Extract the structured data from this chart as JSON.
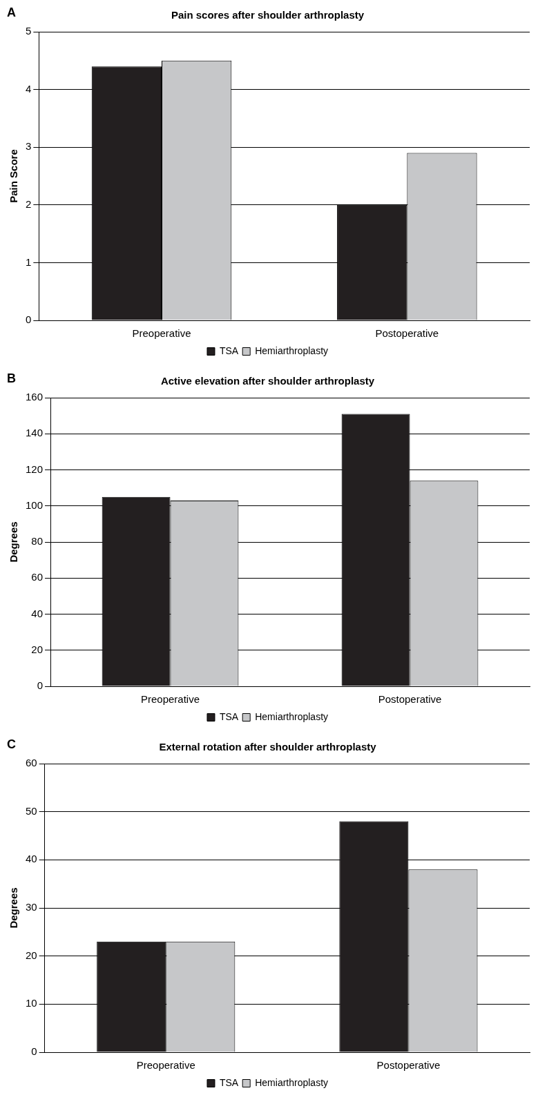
{
  "chart_data": [
    {
      "type": "bar",
      "title": "Pain scores after shoulder arthroplasty",
      "annotations": [
        "A"
      ],
      "ylabel": "Pain Score",
      "categories": [
        "Preoperative",
        "Postoperative"
      ],
      "series": [
        {
          "name": "TSA",
          "color": "#231f20",
          "values": [
            4.4,
            2.0
          ]
        },
        {
          "name": "Hemiarthroplasty",
          "color": "#c6c7c9",
          "values": [
            4.5,
            2.9
          ]
        }
      ],
      "ylim": [
        0,
        5
      ],
      "yticks": [
        0,
        1,
        2,
        3,
        4,
        5
      ],
      "grid": "y",
      "legend": "bottom"
    },
    {
      "type": "bar",
      "title": "Active elevation after shoulder arthroplasty",
      "annotations": [
        "B"
      ],
      "ylabel": "Degrees",
      "categories": [
        "Preoperative",
        "Postoperative"
      ],
      "series": [
        {
          "name": "TSA",
          "color": "#231f20",
          "values": [
            105,
            151
          ]
        },
        {
          "name": "Hemiarthroplasty",
          "color": "#c6c7c9",
          "values": [
            103,
            114
          ]
        }
      ],
      "ylim": [
        0,
        160
      ],
      "yticks": [
        0,
        20,
        40,
        60,
        80,
        100,
        120,
        140,
        160
      ],
      "grid": "y",
      "legend": "bottom"
    },
    {
      "type": "bar",
      "title": "External rotation after shoulder arthroplasty",
      "annotations": [
        "C"
      ],
      "ylabel": "Degrees",
      "categories": [
        "Preoperative",
        "Postoperative"
      ],
      "series": [
        {
          "name": "TSA",
          "color": "#231f20",
          "values": [
            23,
            48
          ]
        },
        {
          "name": "Hemiarthroplasty",
          "color": "#c6c7c9",
          "values": [
            23,
            38
          ]
        }
      ],
      "ylim": [
        0,
        60
      ],
      "yticks": [
        0,
        10,
        20,
        30,
        40,
        50,
        60
      ],
      "grid": "y",
      "legend": "bottom"
    }
  ]
}
